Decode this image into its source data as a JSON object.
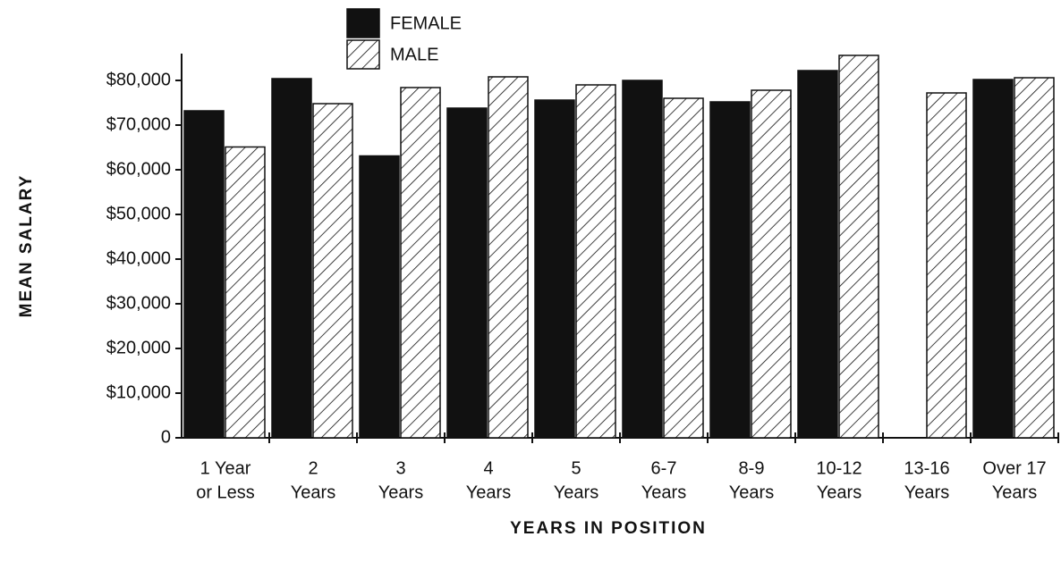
{
  "chart_data": {
    "type": "bar",
    "xlabel": "YEARS IN POSITION",
    "ylabel": "MEAN SALARY",
    "categories": [
      [
        "1 Year",
        "or Less"
      ],
      [
        "2",
        "Years"
      ],
      [
        "3",
        "Years"
      ],
      [
        "4",
        "Years"
      ],
      [
        "5",
        "Years"
      ],
      [
        "6-7",
        "Years"
      ],
      [
        "8-9",
        "Years"
      ],
      [
        "10-12",
        "Years"
      ],
      [
        "13-16",
        "Years"
      ],
      [
        "Over 17",
        "Years"
      ]
    ],
    "series": [
      {
        "name": "FEMALE",
        "color": "#111111",
        "pattern": "solid",
        "values": [
          73200,
          80400,
          63100,
          73800,
          75600,
          80000,
          75200,
          82200,
          null,
          80200
        ]
      },
      {
        "name": "MALE",
        "color": "#111111",
        "pattern": "hatch",
        "values": [
          65100,
          74800,
          78400,
          80800,
          79000,
          76000,
          77800,
          85600,
          77200,
          80600
        ]
      }
    ],
    "ylim": [
      0,
      86000
    ],
    "yticks": [
      {
        "value": 0,
        "label": "0"
      },
      {
        "value": 10000,
        "label": "$10,000"
      },
      {
        "value": 20000,
        "label": "$20,000"
      },
      {
        "value": 30000,
        "label": "$30,000"
      },
      {
        "value": 40000,
        "label": "$40,000"
      },
      {
        "value": 50000,
        "label": "$50,000"
      },
      {
        "value": 60000,
        "label": "$60,000"
      },
      {
        "value": 70000,
        "label": "$70,000"
      },
      {
        "value": 80000,
        "label": "$80,000"
      }
    ],
    "grid": false,
    "legend": "top"
  }
}
